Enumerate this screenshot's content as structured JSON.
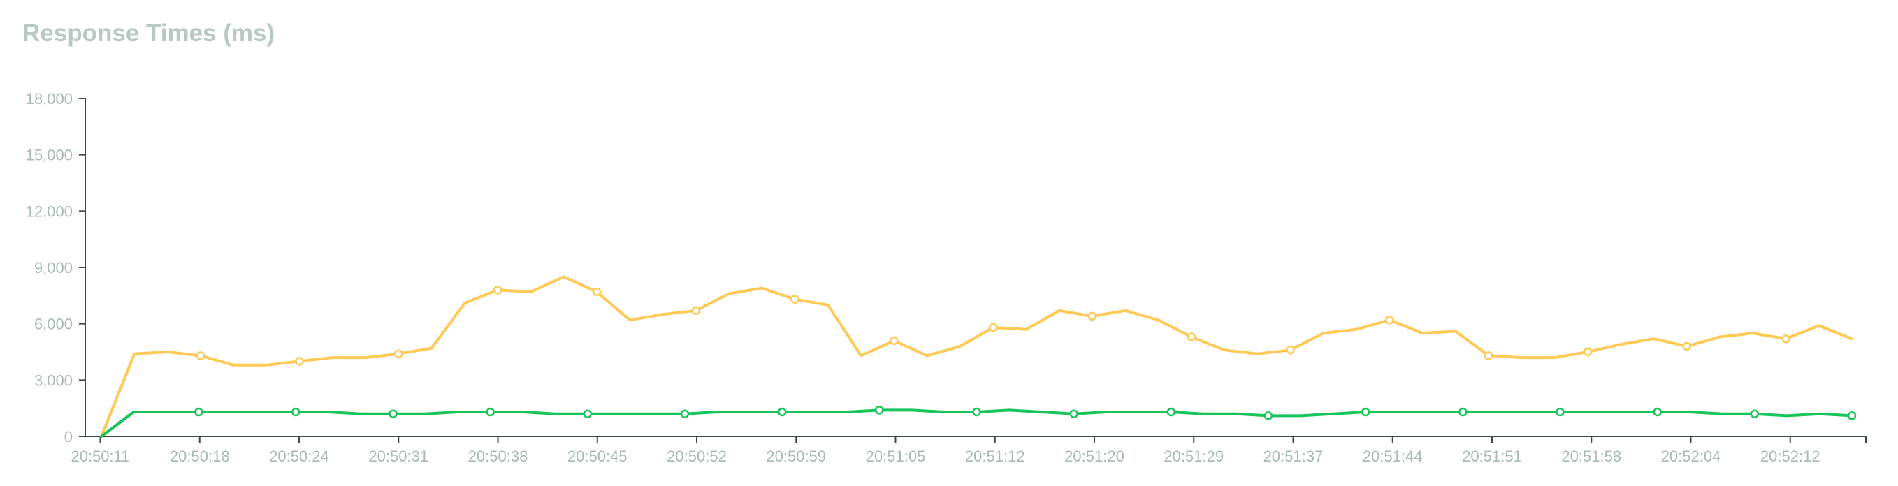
{
  "chart_data": {
    "type": "line",
    "title": "Response Times (ms)",
    "ylim": [
      0,
      18000
    ],
    "y_ticks": [
      "0",
      "3,000",
      "6,000",
      "9,000",
      "12,000",
      "15,000",
      "18,000"
    ],
    "y_tick_values": [
      0,
      3000,
      6000,
      9000,
      12000,
      15000,
      18000
    ],
    "x_tick_labels": [
      "20:50:11",
      "20:50:18",
      "20:50:24",
      "20:50:31",
      "20:50:38",
      "20:50:45",
      "20:50:52",
      "20:50:59",
      "20:51:05",
      "20:51:12",
      "20:51:20",
      "20:51:29",
      "20:51:37",
      "20:51:44",
      "20:51:51",
      "20:51:58",
      "20:52:04",
      "20:52:12"
    ],
    "grid": false,
    "legend": "none",
    "series": [
      {
        "color": "#ffc956",
        "values": [
          0,
          4400,
          4500,
          4300,
          3800,
          3800,
          4000,
          4200,
          4200,
          4400,
          4700,
          7100,
          7800,
          7700,
          8500,
          7700,
          6200,
          6500,
          6700,
          7600,
          7900,
          7300,
          7000,
          4300,
          5100,
          4300,
          4800,
          5800,
          5700,
          6700,
          6400,
          6700,
          6200,
          5300,
          4600,
          4400,
          4600,
          5500,
          5700,
          6200,
          5500,
          5600,
          4300,
          4200,
          4200,
          4500,
          4900,
          5200,
          4800,
          5300,
          5500,
          5200,
          5900,
          5200
        ]
      },
      {
        "color": "#16c45a",
        "values": [
          0,
          1300,
          1300,
          1300,
          1300,
          1300,
          1300,
          1300,
          1200,
          1200,
          1200,
          1300,
          1300,
          1300,
          1200,
          1200,
          1200,
          1200,
          1200,
          1300,
          1300,
          1300,
          1300,
          1300,
          1400,
          1400,
          1300,
          1300,
          1400,
          1300,
          1200,
          1300,
          1300,
          1300,
          1200,
          1200,
          1100,
          1100,
          1200,
          1300,
          1300,
          1300,
          1300,
          1300,
          1300,
          1300,
          1300,
          1300,
          1300,
          1300,
          1200,
          1200,
          1100,
          1200,
          1100
        ]
      }
    ],
    "marker_every": 3
  }
}
